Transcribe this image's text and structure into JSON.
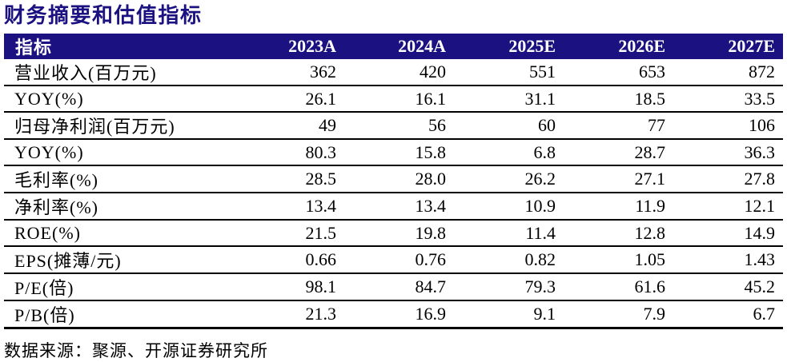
{
  "page": {
    "title": "财务摘要和估值指标",
    "source_note": "数据来源：聚源、开源证券研究所"
  },
  "colors": {
    "header_background": "#1b1180",
    "header_text": "#ffffff",
    "title_text": "#1b1180",
    "body_text": "#000000",
    "row_divider": "#000000"
  },
  "table": {
    "header": [
      "指标",
      "2023A",
      "2024A",
      "2025E",
      "2026E",
      "2027E"
    ],
    "rows": [
      {
        "label": "营业收入(百万元)",
        "values": [
          "362",
          "420",
          "551",
          "653",
          "872"
        ]
      },
      {
        "label": "YOY(%)",
        "values": [
          "26.1",
          "16.1",
          "31.1",
          "18.5",
          "33.5"
        ]
      },
      {
        "label": "归母净利润(百万元)",
        "values": [
          "49",
          "56",
          "60",
          "77",
          "106"
        ]
      },
      {
        "label": "YOY(%)",
        "values": [
          "80.3",
          "15.8",
          "6.8",
          "28.7",
          "36.3"
        ]
      },
      {
        "label": "毛利率(%)",
        "values": [
          "28.5",
          "28.0",
          "26.2",
          "27.1",
          "27.8"
        ]
      },
      {
        "label": "净利率(%)",
        "values": [
          "13.4",
          "13.4",
          "10.9",
          "11.9",
          "12.1"
        ]
      },
      {
        "label": "ROE(%)",
        "values": [
          "21.5",
          "19.8",
          "11.4",
          "12.8",
          "14.9"
        ]
      },
      {
        "label": "EPS(摊薄/元)",
        "values": [
          "0.66",
          "0.76",
          "0.82",
          "1.05",
          "1.43"
        ]
      },
      {
        "label": "P/E(倍)",
        "values": [
          "98.1",
          "84.7",
          "79.3",
          "61.6",
          "45.2"
        ]
      },
      {
        "label": "P/B(倍)",
        "values": [
          "21.3",
          "16.9",
          "9.1",
          "7.9",
          "6.7"
        ]
      }
    ]
  }
}
